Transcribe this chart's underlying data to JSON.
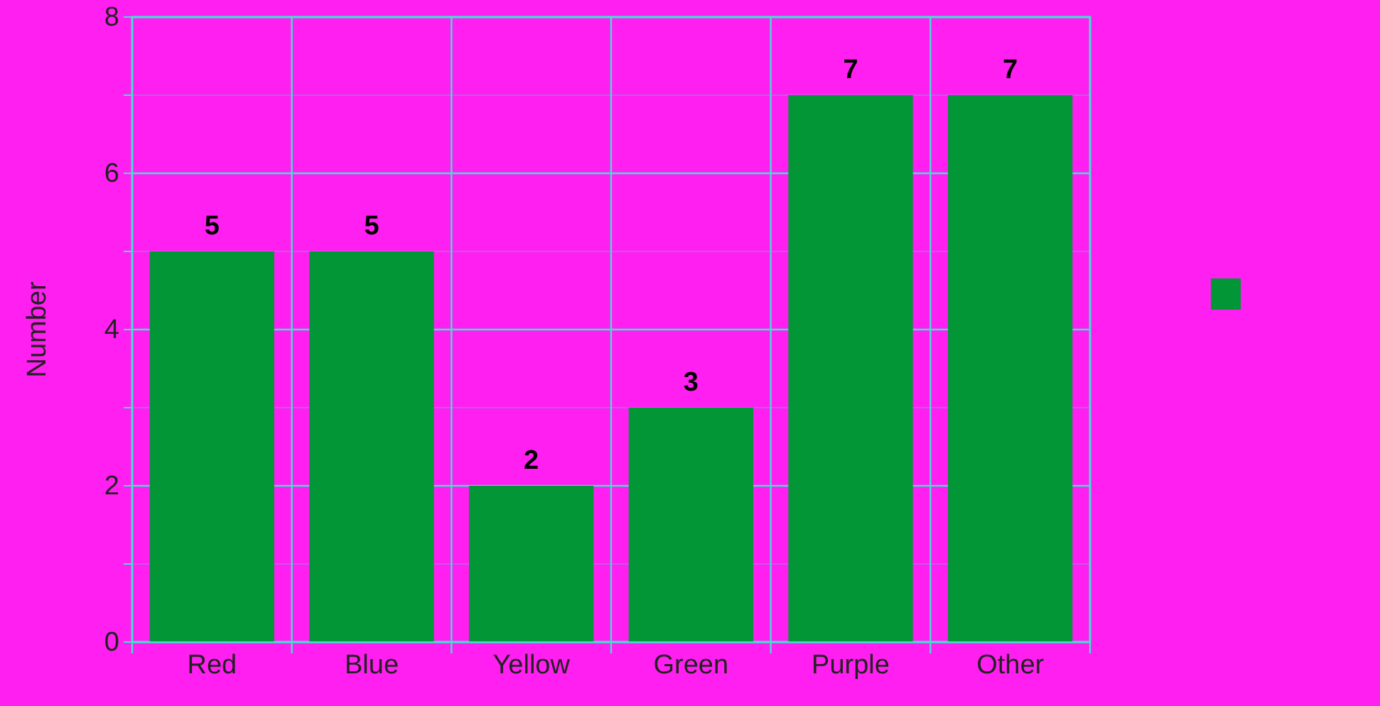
{
  "chart_data": {
    "type": "bar",
    "ylabel": "Number",
    "categories": [
      "Red",
      "Blue",
      "Yellow",
      "Green",
      "Purple",
      "Other"
    ],
    "series": [
      {
        "color": "#039637",
        "values": [
          5,
          5,
          2,
          3,
          7,
          7
        ]
      }
    ],
    "ylim": [
      0,
      8
    ],
    "yticks": [
      0,
      {
        "value": 1,
        "label": null
      },
      2,
      {
        "value": 3,
        "label": null
      },
      4,
      {
        "value": 5,
        "label": null
      },
      6,
      {
        "value": 7,
        "label": null
      },
      8
    ],
    "grid": true,
    "data_labels": true
  }
}
